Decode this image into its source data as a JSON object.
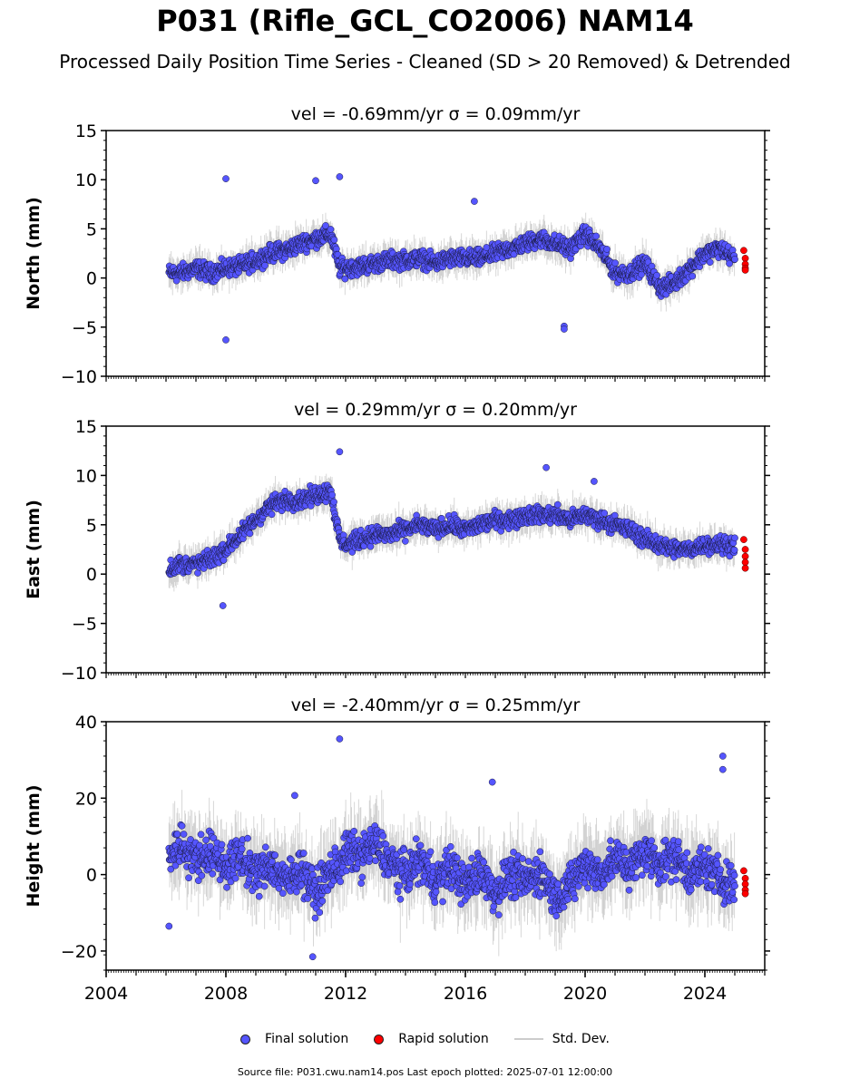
{
  "title": "P031 (Rifle_GCL_CO2006) NAM14",
  "subtitle": "Processed Daily Position Time Series - Cleaned (SD > 20 Removed) & Detrended",
  "footer": "Source file: P031.cwu.nam14.pos  Last epoch plotted: 2025-07-01 12:00:00",
  "legend": {
    "final": "Final solution",
    "rapid": "Rapid solution",
    "std": "Std. Dev."
  },
  "colors": {
    "final": "#5555ff",
    "rapid": "#ff0000",
    "std": "#b0b0b0"
  },
  "chart_data": [
    {
      "type": "scatter",
      "panel_title": "vel = -0.69mm/yr   σ = 0.09mm/yr",
      "ylabel": "North (mm)",
      "xlim": [
        2004.0,
        2026.0
      ],
      "ylim": [
        -10,
        15
      ],
      "yticks": [
        -10,
        -5,
        0,
        5,
        10,
        15
      ],
      "xticks": [],
      "series": [
        {
          "name": "Final solution",
          "x": [
            2006.1,
            2006.5,
            2007.0,
            2007.5,
            2008.0,
            2008.5,
            2009.0,
            2009.5,
            2010.0,
            2010.5,
            2011.0,
            2011.5,
            2011.8,
            2012.0,
            2012.5,
            2013.0,
            2013.5,
            2014.0,
            2014.5,
            2015.0,
            2015.5,
            2016.0,
            2016.5,
            2017.0,
            2017.5,
            2018.0,
            2018.5,
            2019.0,
            2019.5,
            2020.0,
            2020.5,
            2021.0,
            2021.5,
            2022.0,
            2022.5,
            2023.0,
            2023.5,
            2024.0,
            2024.5,
            2025.0
          ],
          "y": [
            0.5,
            0.5,
            1.0,
            0.5,
            1.0,
            1.2,
            1.8,
            2.5,
            2.8,
            3.5,
            4.0,
            4.5,
            1.0,
            1.0,
            1.2,
            1.5,
            1.8,
            1.8,
            2.0,
            1.5,
            2.0,
            2.0,
            2.0,
            2.5,
            3.0,
            3.5,
            4.0,
            3.5,
            3.0,
            4.5,
            3.0,
            0.5,
            0.5,
            1.5,
            -1.0,
            -0.5,
            1.0,
            2.5,
            3.0,
            2.0
          ]
        },
        {
          "name": "Rapid solution",
          "x": [
            2025.3,
            2025.35,
            2025.4,
            2025.45,
            2025.5
          ],
          "y": [
            2.8,
            2.0,
            1.4,
            1.0,
            0.8
          ]
        }
      ],
      "outliers": {
        "x": [
          2008.0,
          2008.0,
          2011.0,
          2011.8,
          2016.3,
          2019.3,
          2019.3
        ],
        "y": [
          10.1,
          -6.3,
          9.9,
          10.3,
          7.8,
          -4.9,
          -5.2
        ]
      }
    },
    {
      "type": "scatter",
      "panel_title": "vel = 0.29mm/yr   σ = 0.20mm/yr",
      "ylabel": "East (mm)",
      "xlim": [
        2004.0,
        2026.0
      ],
      "ylim": [
        -10,
        15
      ],
      "yticks": [
        -10,
        -5,
        0,
        5,
        10,
        15
      ],
      "xticks": [],
      "series": [
        {
          "name": "Final solution",
          "x": [
            2006.1,
            2006.5,
            2007.0,
            2007.5,
            2008.0,
            2008.5,
            2009.0,
            2009.5,
            2010.0,
            2010.5,
            2011.0,
            2011.5,
            2011.8,
            2012.0,
            2012.5,
            2013.0,
            2013.5,
            2014.0,
            2014.5,
            2015.0,
            2015.5,
            2016.0,
            2016.5,
            2017.0,
            2017.5,
            2018.0,
            2018.5,
            2019.0,
            2019.5,
            2020.0,
            2020.5,
            2021.0,
            2021.5,
            2022.0,
            2022.5,
            2023.0,
            2023.5,
            2024.0,
            2024.5,
            2025.0
          ],
          "y": [
            0.5,
            1.0,
            1.0,
            1.5,
            2.5,
            4.0,
            5.5,
            7.0,
            7.5,
            7.5,
            8.0,
            8.5,
            3.5,
            3.0,
            3.5,
            4.0,
            4.0,
            4.5,
            5.0,
            4.5,
            5.0,
            4.5,
            5.0,
            5.5,
            5.5,
            6.0,
            6.0,
            6.0,
            5.5,
            6.0,
            5.5,
            5.0,
            4.5,
            3.5,
            3.0,
            2.5,
            2.5,
            3.0,
            3.0,
            3.0
          ]
        },
        {
          "name": "Rapid solution",
          "x": [
            2025.3,
            2025.35,
            2025.4,
            2025.45,
            2025.5
          ],
          "y": [
            3.5,
            2.5,
            1.8,
            1.2,
            0.6
          ]
        }
      ],
      "outliers": {
        "x": [
          2007.9,
          2011.8,
          2018.7,
          2020.3
        ],
        "y": [
          -3.2,
          12.4,
          10.8,
          9.4
        ]
      }
    },
    {
      "type": "scatter",
      "panel_title": "vel = -2.40mm/yr   σ = 0.25mm/yr",
      "ylabel": "Height (mm)",
      "xlim": [
        2004.0,
        2026.0
      ],
      "ylim": [
        -25,
        40
      ],
      "yticks": [
        -20,
        0,
        20,
        40
      ],
      "xticks": [
        "2004",
        "2008",
        "2012",
        "2016",
        "2020",
        "2024"
      ],
      "series": [
        {
          "name": "Final solution",
          "x": [
            2006.1,
            2006.5,
            2007.0,
            2007.5,
            2008.0,
            2008.5,
            2009.0,
            2009.5,
            2010.0,
            2010.5,
            2011.0,
            2011.5,
            2011.8,
            2012.0,
            2012.5,
            2013.0,
            2013.5,
            2014.0,
            2014.5,
            2015.0,
            2015.5,
            2016.0,
            2016.5,
            2017.0,
            2017.5,
            2018.0,
            2018.5,
            2019.0,
            2019.5,
            2020.0,
            2020.5,
            2021.0,
            2021.5,
            2022.0,
            2022.5,
            2023.0,
            2023.5,
            2024.0,
            2024.5,
            2025.0
          ],
          "y": [
            5.0,
            8.0,
            4.0,
            6.0,
            2.0,
            5.0,
            0.0,
            3.0,
            -2.0,
            2.0,
            -5.0,
            1.0,
            2.0,
            6.0,
            5.0,
            8.0,
            3.0,
            0.0,
            4.0,
            -2.0,
            2.0,
            -3.0,
            1.0,
            -5.0,
            0.0,
            -2.0,
            1.0,
            -6.0,
            -3.0,
            3.0,
            0.0,
            4.0,
            2.0,
            6.0,
            3.0,
            5.0,
            0.0,
            2.0,
            -1.0,
            -3.0
          ]
        },
        {
          "name": "Rapid solution",
          "x": [
            2025.3,
            2025.35,
            2025.4,
            2025.45,
            2025.5
          ],
          "y": [
            1.0,
            -1.0,
            -2.5,
            -4.0,
            -5.0
          ]
        }
      ],
      "outliers": {
        "x": [
          2011.8,
          2016.9,
          2024.6,
          2024.6,
          2006.1,
          2010.3,
          2010.9
        ],
        "y": [
          35.5,
          24.2,
          31.0,
          27.5,
          -13.5,
          20.7,
          -21.5
        ]
      }
    }
  ]
}
